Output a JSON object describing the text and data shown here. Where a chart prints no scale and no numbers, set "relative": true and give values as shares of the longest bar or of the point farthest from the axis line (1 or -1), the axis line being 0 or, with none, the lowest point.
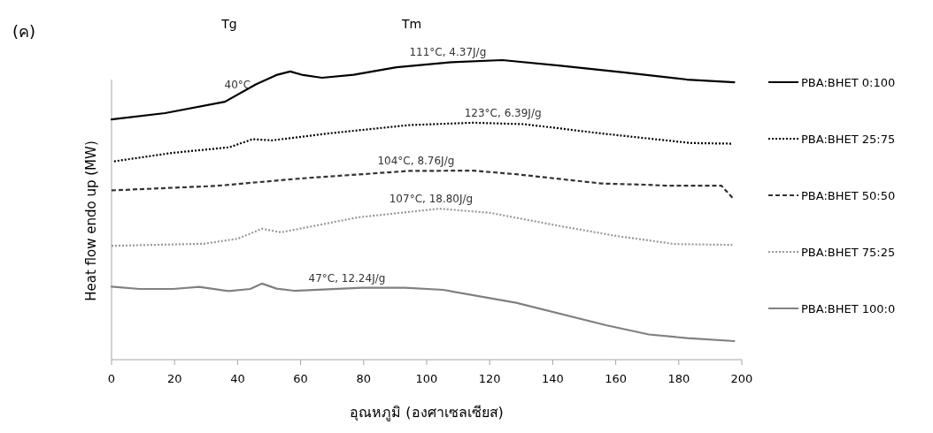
{
  "chart_data": {
    "type": "line",
    "title": "(ค)",
    "xlabel": "อุณหภูมิ (องศาเซลเซียส)",
    "ylabel": "Heat flow endo up (MW)",
    "relative": true,
    "xlim": [
      0,
      200
    ],
    "xticks": [
      0,
      20,
      40,
      60,
      80,
      100,
      120,
      140,
      160,
      180,
      200
    ],
    "legend": "right",
    "annotations": [
      "Tg",
      "Tm",
      {
        "text": "40°C",
        "x": 40,
        "y": 0.885
      },
      {
        "text": "111°C, 4.37J/g",
        "x": 106.7,
        "y": 0.993
      },
      {
        "text": "123°C, 6.39J/g",
        "x": 124.2,
        "y": 0.79
      },
      {
        "text": "104°C, 8.76J/g",
        "x": 96.6,
        "y": 0.63
      },
      {
        "text": "107°C, 18.80J/g",
        "x": 101.4,
        "y": 0.504
      },
      {
        "text": "47°C, 12.24J/g",
        "x": 74.7,
        "y": 0.24
      }
    ],
    "series": [
      {
        "name": "PBA:BHET 0:100",
        "color": "#000000",
        "line_style": "solid",
        "x": [
          0,
          17,
          36,
          45.8,
          52.6,
          56.7,
          60.8,
          66.8,
          76.8,
          90.4,
          108,
          124,
          141.8,
          162.4,
          182.6,
          197.6
        ],
        "values": [
          0.802,
          0.823,
          0.861,
          0.919,
          0.951,
          0.962,
          0.95,
          0.941,
          0.951,
          0.976,
          0.993,
          1.0,
          0.982,
          0.959,
          0.935,
          0.926
        ]
      },
      {
        "name": "PBA:BHET 25:75",
        "color": "#000000",
        "line_style": "dotted",
        "x": [
          0.8,
          19.1,
          37.4,
          44.8,
          51,
          68.6,
          94.4,
          114.8,
          131.1,
          155.5,
          184,
          197
        ],
        "values": [
          0.662,
          0.69,
          0.709,
          0.736,
          0.732,
          0.755,
          0.783,
          0.791,
          0.786,
          0.755,
          0.723,
          0.721
        ]
      },
      {
        "name": "PBA:BHET 50:50",
        "color": "#333333",
        "line_style": "dashed",
        "x": [
          0,
          33.1,
          60.2,
          94.4,
          114.8,
          128.4,
          155.5,
          169.1,
          175.8,
          193.5,
          197.6
        ],
        "values": [
          0.565,
          0.58,
          0.605,
          0.63,
          0.631,
          0.619,
          0.588,
          0.584,
          0.581,
          0.581,
          0.534
        ]
      },
      {
        "name": "PBA:BHET 75:25",
        "color": "#999999",
        "line_style": "dotted",
        "x": [
          0,
          29.3,
          40.2,
          47.7,
          53.8,
          78.2,
          104,
          120.2,
          141.8,
          159.6,
          178.7,
          197
        ],
        "values": [
          0.38,
          0.387,
          0.404,
          0.437,
          0.425,
          0.475,
          0.504,
          0.49,
          0.447,
          0.414,
          0.386,
          0.383
        ]
      },
      {
        "name": "PBA:BHET 100:0",
        "color": "#808080",
        "line_style": "solid",
        "x": [
          0,
          8.8,
          19.6,
          27.8,
          37.2,
          44,
          47.7,
          52.4,
          57.9,
          79.5,
          93.1,
          105.3,
          128.4,
          156.9,
          170.5,
          182.7,
          197.6
        ],
        "values": [
          0.244,
          0.236,
          0.236,
          0.243,
          0.229,
          0.236,
          0.254,
          0.237,
          0.23,
          0.24,
          0.24,
          0.233,
          0.19,
          0.115,
          0.084,
          0.072,
          0.062
        ]
      }
    ]
  }
}
